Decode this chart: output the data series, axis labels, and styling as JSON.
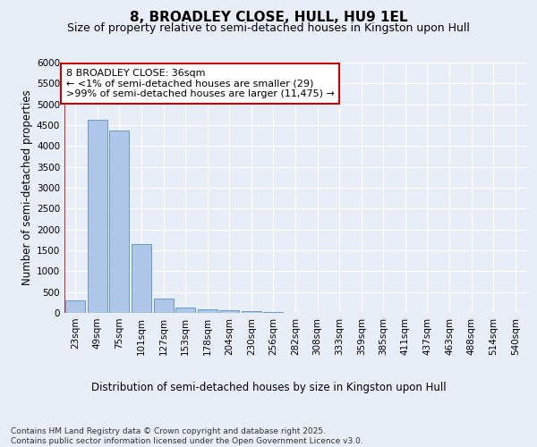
{
  "title": "8, BROADLEY CLOSE, HULL, HU9 1EL",
  "subtitle": "Size of property relative to semi-detached houses in Kingston upon Hull",
  "xlabel": "Distribution of semi-detached houses by size in Kingston upon Hull",
  "ylabel": "Number of semi-detached properties",
  "categories": [
    "23sqm",
    "49sqm",
    "75sqm",
    "101sqm",
    "127sqm",
    "153sqm",
    "178sqm",
    "204sqm",
    "230sqm",
    "256sqm",
    "282sqm",
    "308sqm",
    "333sqm",
    "359sqm",
    "385sqm",
    "411sqm",
    "437sqm",
    "463sqm",
    "488sqm",
    "514sqm",
    "540sqm"
  ],
  "values": [
    310,
    4620,
    4370,
    1650,
    345,
    135,
    80,
    60,
    50,
    20,
    10,
    5,
    2,
    1,
    0,
    0,
    0,
    0,
    0,
    0,
    0
  ],
  "bar_color": "#aec6e8",
  "bar_edge_color": "#5a8fc1",
  "annotation_text": "8 BROADLEY CLOSE: 36sqm\n← <1% of semi-detached houses are smaller (29)\n>99% of semi-detached houses are larger (11,475) →",
  "annotation_box_color": "#ffffff",
  "annotation_box_edge": "#cc0000",
  "vline_color": "#cc0000",
  "ylim": [
    0,
    6000
  ],
  "yticks": [
    0,
    500,
    1000,
    1500,
    2000,
    2500,
    3000,
    3500,
    4000,
    4500,
    5000,
    5500,
    6000
  ],
  "bg_color": "#e8eef7",
  "plot_bg_color": "#e8eef7",
  "grid_color": "#ffffff",
  "footer": "Contains HM Land Registry data © Crown copyright and database right 2025.\nContains public sector information licensed under the Open Government Licence v3.0.",
  "title_fontsize": 11,
  "subtitle_fontsize": 9,
  "axis_label_fontsize": 8.5,
  "tick_fontsize": 7.5,
  "annotation_fontsize": 8,
  "footer_fontsize": 6.5
}
